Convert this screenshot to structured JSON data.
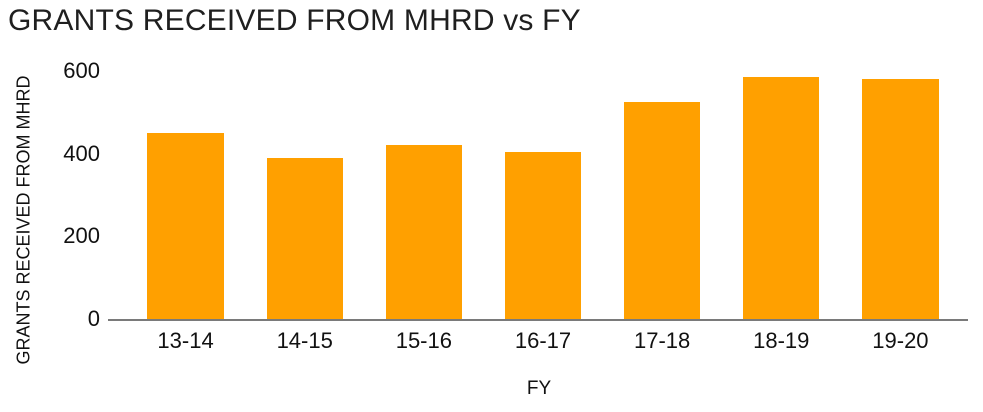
{
  "chart_data": {
    "type": "bar",
    "title": "GRANTS RECEIVED FROM MHRD vs FY",
    "xlabel": "FY",
    "ylabel": "GRANTS RECEIVED FROM MHRD",
    "categories": [
      "13-14",
      "14-15",
      "15-16",
      "16-17",
      "17-18",
      "18-19",
      "19-20"
    ],
    "values": [
      450,
      390,
      420,
      405,
      525,
      585,
      580
    ],
    "yticks": [
      0,
      200,
      400,
      600
    ],
    "ylim": [
      0,
      600
    ],
    "grid": false,
    "legend": false,
    "bar_color": "#FFA000",
    "axis_line_color": "#7a7a7a",
    "text_color": "#111111",
    "title_color": "#1f1f1f",
    "background_color": "#ffffff"
  }
}
